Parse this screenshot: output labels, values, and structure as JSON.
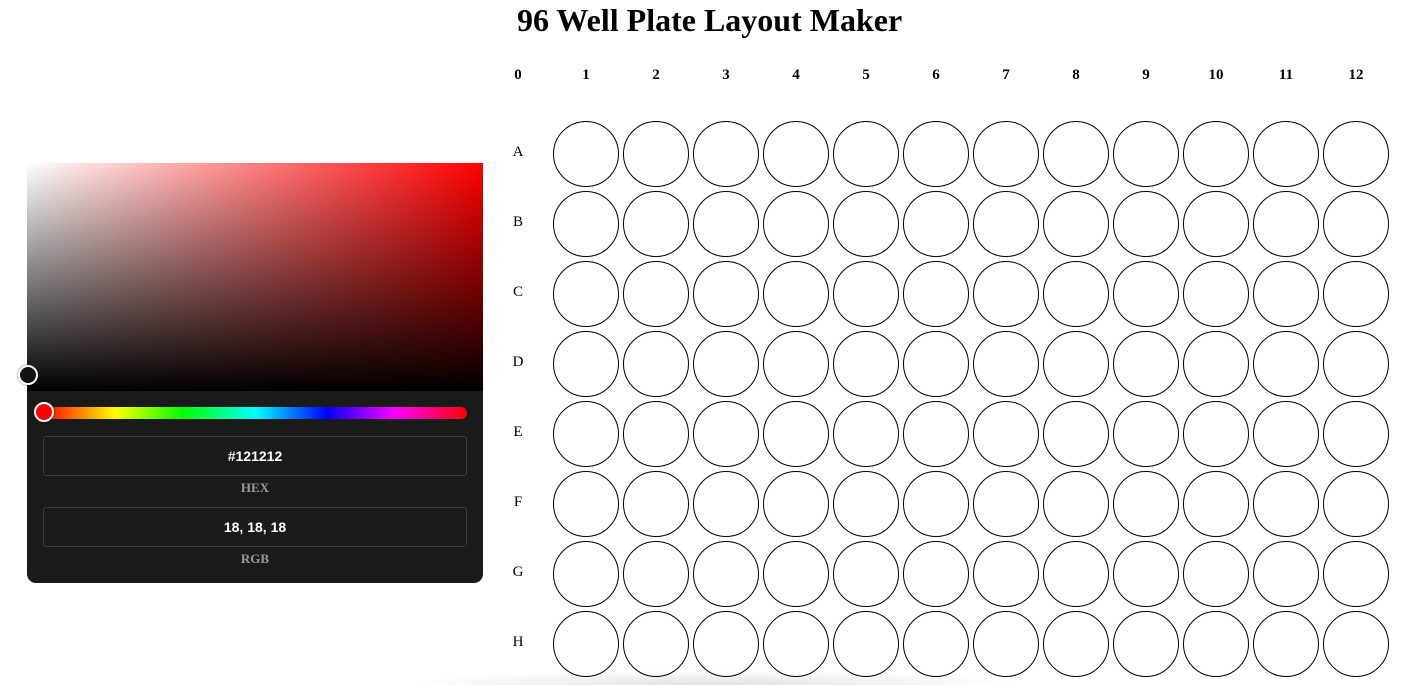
{
  "page": {
    "title": "96 Well Plate Layout Maker"
  },
  "color_picker": {
    "hue_color": "#ff0000",
    "selected_color": "#121212",
    "hex_value": "#121212",
    "hex_label": "HEX",
    "rgb_value": "18, 18, 18",
    "rgb_label": "RGB"
  },
  "plate": {
    "corner_label": "0",
    "columns": [
      "1",
      "2",
      "3",
      "4",
      "5",
      "6",
      "7",
      "8",
      "9",
      "10",
      "11",
      "12"
    ],
    "rows": [
      "A",
      "B",
      "C",
      "D",
      "E",
      "F",
      "G",
      "H"
    ],
    "well_fill": "#ffffff",
    "well_border": "#000000"
  }
}
